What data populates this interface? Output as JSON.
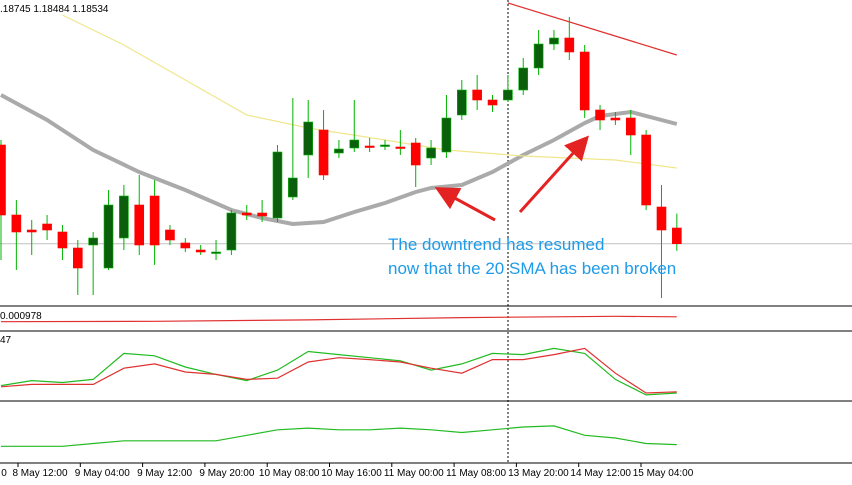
{
  "chart_data": [
    {
      "type": "candlestick",
      "header": ".18745 1.18484 1.18534",
      "xtick_labels": [
        "0",
        "8 May 12:00",
        "9 May 04:00",
        "9 May 12:00",
        "9 May 20:00",
        "10 May 08:00",
        "10 May 16:00",
        "11 May 00:00",
        "11 May 08:00",
        "13 May 20:00",
        "14 May 12:00",
        "15 May 04:00"
      ],
      "ylim": [
        1.1814,
        1.2024
      ],
      "up_color": "#0b5e0b",
      "down_color": "#ff0000",
      "wick_color": "#00b400",
      "open": [
        1.19225,
        1.18735,
        1.1863,
        1.18672,
        1.18616,
        1.18504,
        1.18525,
        1.18364,
        1.18574,
        1.18805,
        1.18868,
        1.1863,
        1.18539,
        1.1849,
        1.18469,
        1.1849,
        1.18749,
        1.18749,
        1.18714,
        1.18861,
        1.19155,
        1.1933,
        1.19169,
        1.19204,
        1.19218,
        1.19218,
        1.19211,
        1.19239,
        1.19134,
        1.19176,
        1.19435,
        1.1961,
        1.1954,
        1.1954,
        1.1961,
        1.19764,
        1.19932,
        1.19974,
        1.19876,
        1.1947,
        1.19414,
        1.19414,
        1.19295,
        1.18791,
        1.18644
      ],
      "high": [
        1.1926,
        1.1884,
        1.187,
        1.18735,
        1.18665,
        1.1856,
        1.18616,
        1.1891,
        1.18945,
        1.19015,
        1.1898,
        1.18665,
        1.18574,
        1.18525,
        1.1856,
        1.1877,
        1.18805,
        1.1884,
        1.19225,
        1.19554,
        1.1954,
        1.1947,
        1.1926,
        1.1954,
        1.19274,
        1.1926,
        1.1933,
        1.19274,
        1.1926,
        1.19575,
        1.1968,
        1.19715,
        1.19575,
        1.19715,
        1.19834,
        1.2003,
        1.2003,
        1.20121,
        1.19925,
        1.19505,
        1.19456,
        1.1947,
        1.1933,
        1.18945,
        1.18745
      ],
      "low": [
        1.1842,
        1.1835,
        1.18455,
        1.1856,
        1.1842,
        1.18175,
        1.18175,
        1.1835,
        1.1849,
        1.18455,
        1.18385,
        1.18525,
        1.18476,
        1.18455,
        1.1842,
        1.18455,
        1.187,
        1.18686,
        1.18686,
        1.1884,
        1.18994,
        1.1898,
        1.19134,
        1.19176,
        1.19176,
        1.1919,
        1.19155,
        1.18931,
        1.19085,
        1.19134,
        1.194,
        1.1947,
        1.19456,
        1.19526,
        1.19575,
        1.19715,
        1.1989,
        1.1982,
        1.19414,
        1.1933,
        1.19365,
        1.19155,
        1.1877,
        1.18154,
        1.18484
      ],
      "close": [
        1.18735,
        1.18616,
        1.18616,
        1.1863,
        1.18504,
        1.18364,
        1.18574,
        1.18805,
        1.18868,
        1.18525,
        1.18525,
        1.1856,
        1.18504,
        1.18476,
        1.18476,
        1.18749,
        1.18735,
        1.18728,
        1.19176,
        1.18994,
        1.19386,
        1.19015,
        1.19197,
        1.1926,
        1.19211,
        1.19225,
        1.19204,
        1.19085,
        1.19204,
        1.19414,
        1.1961,
        1.1954,
        1.19505,
        1.1961,
        1.19764,
        1.19932,
        1.19974,
        1.19876,
        1.1947,
        1.194,
        1.194,
        1.19295,
        1.18805,
        1.1863,
        1.18534
      ],
      "series": [
        {
          "color": "#aaaaaa",
          "x": [
            0,
            3,
            6,
            9,
            12,
            15,
            17,
            19,
            21,
            23,
            25,
            27,
            28,
            30,
            32,
            34,
            36,
            38,
            39,
            41,
            44
          ],
          "values": [
            1.19575,
            1.194,
            1.1919,
            1.19036,
            1.1891,
            1.1877,
            1.18714,
            1.18672,
            1.18686,
            1.18756,
            1.18819,
            1.18896,
            1.18924,
            1.18945,
            1.19036,
            1.19155,
            1.1926,
            1.19379,
            1.19428,
            1.19456,
            1.19372
          ]
        },
        {
          "color": "#f0e68c",
          "x": [
            4,
            8,
            12,
            16,
            20,
            25,
            29,
            34,
            40,
            44
          ],
          "values": [
            1.20135,
            1.19925,
            1.1968,
            1.19435,
            1.19344,
            1.1926,
            1.1919,
            1.19148,
            1.1912,
            1.19064
          ]
        },
        {
          "color": "#e03030",
          "x": [
            33,
            44
          ],
          "values": [
            1.20219,
            1.19855
          ]
        }
      ],
      "annotations": [
        "The downtrend has resumed",
        "now that the 20 SMA has been broken"
      ]
    },
    {
      "type": "line",
      "label": "0.000978",
      "ylim": [
        -0.002,
        0.002
      ],
      "series": [
        {
          "color": "#e03030",
          "x": [
            0,
            10,
            20,
            30,
            40,
            44
          ],
          "values": [
            -0.0006,
            -0.0005,
            -0.0002,
            0.0003,
            0.0006,
            0.0005
          ]
        }
      ]
    },
    {
      "type": "line",
      "label": "47",
      "ylim": [
        0,
        100
      ],
      "series": [
        {
          "color": "#22bb22",
          "x": [
            0,
            2,
            4,
            6,
            8,
            10,
            12,
            14,
            16,
            18,
            20,
            22,
            24,
            26,
            28,
            30,
            32,
            34,
            36,
            38,
            40,
            42,
            44
          ],
          "values": [
            20,
            28,
            25,
            30,
            72,
            68,
            50,
            38,
            28,
            45,
            75,
            70,
            65,
            60,
            45,
            55,
            72,
            70,
            80,
            72,
            30,
            5,
            8
          ]
        },
        {
          "color": "#e03030",
          "x": [
            0,
            2,
            4,
            6,
            8,
            10,
            12,
            14,
            16,
            18,
            20,
            22,
            24,
            26,
            28,
            30,
            32,
            34,
            36,
            38,
            40,
            42,
            44
          ],
          "values": [
            18,
            22,
            22,
            22,
            48,
            55,
            42,
            38,
            30,
            32,
            58,
            65,
            62,
            58,
            48,
            40,
            62,
            62,
            70,
            80,
            40,
            8,
            10
          ]
        }
      ]
    },
    {
      "type": "line",
      "ylim": [
        0,
        100
      ],
      "series": [
        {
          "color": "#22bb22",
          "x": [
            0,
            4,
            6,
            8,
            10,
            14,
            16,
            18,
            20,
            22,
            24,
            26,
            28,
            30,
            32,
            34,
            36,
            38,
            40,
            42,
            44
          ],
          "values": [
            25,
            25,
            30,
            35,
            35,
            35,
            45,
            55,
            58,
            55,
            55,
            58,
            55,
            50,
            55,
            60,
            62,
            45,
            40,
            30,
            28
          ]
        }
      ]
    }
  ]
}
